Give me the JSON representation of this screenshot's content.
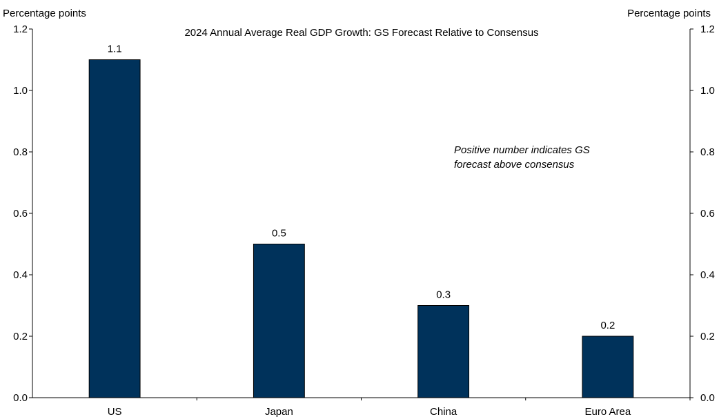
{
  "chart_data": {
    "type": "bar",
    "title": "2024 Annual Average Real GDP Growth: GS Forecast Relative to Consensus",
    "ylabel_left": "Percentage points",
    "ylabel_right": "Percentage points",
    "categories": [
      "US",
      "Japan",
      "China",
      "Euro Area"
    ],
    "values": [
      1.1,
      0.5,
      0.3,
      0.2
    ],
    "value_labels": [
      "1.1",
      "0.5",
      "0.3",
      "0.2"
    ],
    "ylim": [
      0,
      1.2
    ],
    "yticks": [
      "0.0",
      "0.2",
      "0.4",
      "0.6",
      "0.8",
      "1.0",
      "1.2"
    ],
    "annotation": [
      "Positive number indicates GS",
      "forecast above consensus"
    ],
    "bar_color": "#00325B",
    "grid": false,
    "legend": "none"
  }
}
